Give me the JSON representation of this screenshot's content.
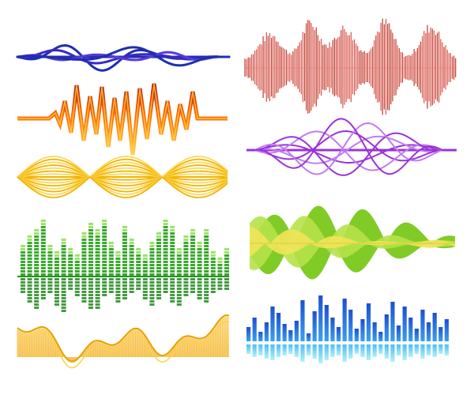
{
  "canvas": {
    "background": "#ffffff"
  },
  "waveforms": [
    {
      "id": "blue-tangled-wave",
      "style": "tangled-lines",
      "colors": [
        "#1e2fb0",
        "#3c28c8",
        "#5a3bd8"
      ]
    },
    {
      "id": "orange-spike-wave",
      "style": "spiky-line",
      "colors": [
        "#b8200a",
        "#ff7a10",
        "#ffd24a"
      ]
    },
    {
      "id": "yellow-lens-wave",
      "style": "lens-bundle",
      "colors": [
        "#f0b400",
        "#ffd75a"
      ]
    },
    {
      "id": "green-equalizer-bars",
      "style": "mirrored-segmented-bars",
      "colors": [
        "#2f8f2a",
        "#58c83c",
        "#9be36a"
      ]
    },
    {
      "id": "yellow-bottom-wave",
      "style": "filled-area-lines",
      "colors": [
        "#e8b000",
        "#ffe27a",
        "#f3a000"
      ]
    },
    {
      "id": "red-spectrum-wave",
      "style": "dense-vertical-lines",
      "colors": [
        "#c0392b",
        "#e8765f"
      ]
    },
    {
      "id": "purple-tangled-wave",
      "style": "tangled-lines",
      "colors": [
        "#9b33d8",
        "#c27cf0"
      ]
    },
    {
      "id": "lime-blob-wave",
      "style": "filled-blobs",
      "colors": [
        "#7ac81a",
        "#b6e24a",
        "#f0e45a"
      ]
    },
    {
      "id": "blue-equalizer-bars",
      "style": "mirrored-bars",
      "colors": [
        "#1f5fd0",
        "#2a9df0",
        "#5fd6f0"
      ]
    }
  ]
}
